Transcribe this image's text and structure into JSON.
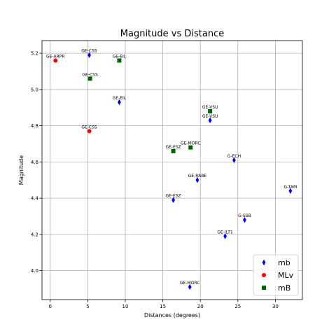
{
  "chart_data": {
    "type": "scatter",
    "title": "Magnitude vs Distance",
    "xlabel": "Distances (degrees)",
    "ylabel": "Magnitude",
    "xlim": [
      -1.1,
      33.6
    ],
    "ylim": [
      3.84,
      5.27
    ],
    "xticks": [
      0,
      5,
      10,
      15,
      20,
      25,
      30
    ],
    "yticks": [
      4.0,
      4.2,
      4.4,
      4.6,
      4.8,
      5.0,
      5.2
    ],
    "grid": true,
    "legend_position": "lower-right",
    "series": [
      {
        "name": "mb",
        "marker": "diamond",
        "color": "#0000ff",
        "points": [
          {
            "x": 5.2,
            "y": 5.19,
            "label": "GE-CSS"
          },
          {
            "x": 9.2,
            "y": 4.93,
            "label": "GE-EIL"
          },
          {
            "x": 21.3,
            "y": 4.83,
            "label": "GE-VSU"
          },
          {
            "x": 24.5,
            "y": 4.61,
            "label": "G-ECH"
          },
          {
            "x": 19.6,
            "y": 4.5,
            "label": "GE-RABE"
          },
          {
            "x": 32.0,
            "y": 4.44,
            "label": "G-TAM"
          },
          {
            "x": 16.4,
            "y": 4.39,
            "label": "GE-ESZ"
          },
          {
            "x": 25.9,
            "y": 4.28,
            "label": "G-SSB"
          },
          {
            "x": 23.3,
            "y": 4.19,
            "label": "GE-ILT1"
          },
          {
            "x": 18.6,
            "y": 3.91,
            "label": "GE-MORC"
          }
        ]
      },
      {
        "name": "MLv",
        "marker": "circle",
        "color": "#ff0000",
        "points": [
          {
            "x": 0.7,
            "y": 5.16,
            "label": "GE-ARPR"
          },
          {
            "x": 5.2,
            "y": 4.77,
            "label": "GE-CSS"
          }
        ]
      },
      {
        "name": "mB",
        "marker": "square",
        "color": "#006400",
        "points": [
          {
            "x": 9.2,
            "y": 5.16,
            "label": "GE-EIL"
          },
          {
            "x": 5.3,
            "y": 5.06,
            "label": "GE-CSS"
          },
          {
            "x": 21.3,
            "y": 4.88,
            "label": "GE-VSU"
          },
          {
            "x": 18.7,
            "y": 4.68,
            "label": "GE-MORC"
          },
          {
            "x": 16.4,
            "y": 4.66,
            "label": "GE-ESZ"
          }
        ]
      }
    ]
  }
}
